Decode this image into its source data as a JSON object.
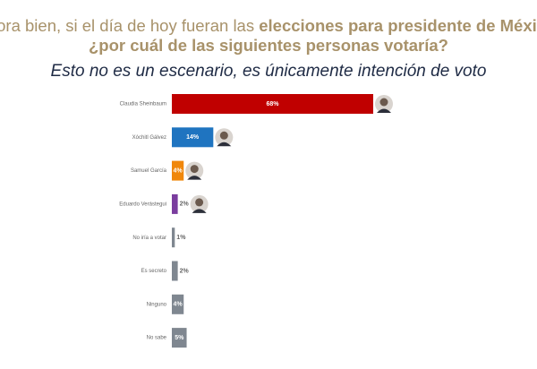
{
  "chart_data": {
    "type": "bar",
    "orientation": "horizontal",
    "title_lines": [
      [
        "Ahora bien, si el día de hoy fueran las ",
        "elecciones para presidente de México,"
      ],
      [
        "¿por cuál de las siguientes personas votaría?"
      ]
    ],
    "subtitle": "Esto no es un escenario, es únicamente intención de voto",
    "categories": [
      "Claudia Sheinbaum",
      "Xóchitl Gálvez",
      "Samuel García",
      "Eduardo Verástegui",
      "No iría a votar",
      "Es secreto",
      "Ninguno",
      "No sabe"
    ],
    "values": [
      68,
      14,
      4,
      2,
      1,
      2,
      4,
      5
    ],
    "value_labels": [
      "68%",
      "14%",
      "4%",
      "2%",
      "1%",
      "2%",
      "4%",
      "5%"
    ],
    "colors": [
      "#c00000",
      "#1f74c0",
      "#f0870a",
      "#7a3d9e",
      "#7f8790",
      "#7f8790",
      "#7f8790",
      "#7f8790"
    ]
  }
}
